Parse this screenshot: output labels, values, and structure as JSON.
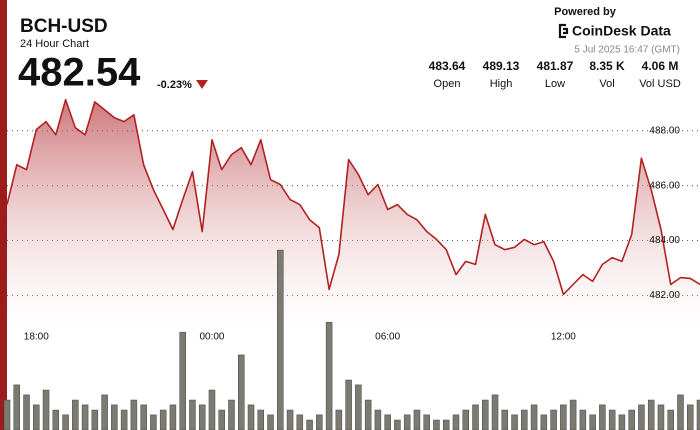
{
  "header": {
    "symbol": "BCH-USD",
    "subtitle": "24 Hour Chart",
    "price": "482.54",
    "change": "-0.23%",
    "powered_by": "Powered by",
    "brand": "CoinDesk Data",
    "timestamp": "5 Jul 2025 16:47 (GMT)"
  },
  "stats": [
    {
      "value": "483.64",
      "label": "Open"
    },
    {
      "value": "489.13",
      "label": "High"
    },
    {
      "value": "481.87",
      "label": "Low"
    },
    {
      "value": "8.35 K",
      "label": "Vol"
    },
    {
      "value": "4.06 M",
      "label": "Vol USD"
    }
  ],
  "chart_data": {
    "type": "area",
    "x": [
      "17:00",
      "17:20",
      "17:40",
      "18:00",
      "18:20",
      "18:40",
      "19:00",
      "19:20",
      "19:40",
      "20:00",
      "20:20",
      "20:40",
      "21:00",
      "21:20",
      "21:40",
      "22:00",
      "22:20",
      "22:40",
      "23:00",
      "23:20",
      "23:40",
      "00:00",
      "00:20",
      "00:40",
      "01:00",
      "01:20",
      "01:40",
      "02:00",
      "02:20",
      "02:40",
      "03:00",
      "03:20",
      "03:40",
      "04:00",
      "04:20",
      "04:40",
      "05:00",
      "05:20",
      "05:40",
      "06:00",
      "06:20",
      "06:40",
      "07:00",
      "07:20",
      "07:40",
      "08:00",
      "08:20",
      "08:40",
      "09:00",
      "09:20",
      "09:40",
      "10:00",
      "10:20",
      "10:40",
      "11:00",
      "11:20",
      "11:40",
      "12:00",
      "12:20",
      "12:40",
      "13:00",
      "13:20",
      "13:40",
      "14:00",
      "14:20",
      "14:40",
      "15:00",
      "15:20",
      "15:40",
      "16:00",
      "16:20",
      "16:40"
    ],
    "series": [
      {
        "color": "#b22222",
        "values": [
          485.31,
          486.76,
          486.58,
          488.04,
          488.33,
          487.85,
          489.13,
          488.11,
          487.85,
          489.05,
          488.76,
          488.47,
          488.33,
          488.58,
          486.76,
          485.85,
          485.13,
          484.4,
          485.49,
          486.51,
          484.33,
          487.67,
          486.58,
          487.13,
          487.38,
          486.76,
          487.67,
          486.22,
          486.04,
          485.49,
          485.31,
          484.76,
          484.47,
          482.22,
          483.49,
          486.95,
          486.4,
          485.67,
          486.04,
          485.13,
          485.31,
          484.95,
          484.76,
          484.33,
          484.04,
          483.67,
          482.76,
          483.24,
          483.13,
          484.95,
          483.85,
          483.67,
          483.75,
          484.04,
          483.85,
          483.96,
          483.24,
          482.04,
          482.4,
          482.76,
          482.51,
          483.13,
          483.38,
          483.24,
          484.22,
          487.0,
          485.85,
          484.4,
          482.4,
          482.65,
          482.62,
          482.4
        ]
      },
      {
        "type": "bar",
        "axis": "y2",
        "color": "#7b7b72",
        "values": [
          99,
          149,
          116,
          83,
          132,
          66,
          50,
          99,
          83,
          66,
          116,
          83,
          66,
          99,
          83,
          50,
          66,
          83,
          323,
          99,
          83,
          132,
          66,
          99,
          248,
          83,
          66,
          50,
          594,
          66,
          50,
          33,
          50,
          356,
          66,
          165,
          149,
          99,
          66,
          50,
          33,
          50,
          66,
          50,
          33,
          33,
          50,
          66,
          83,
          99,
          116,
          66,
          50,
          66,
          83,
          50,
          66,
          83,
          99,
          66,
          50,
          83,
          66,
          50,
          66,
          83,
          99,
          83,
          66,
          116,
          83,
          99
        ]
      }
    ],
    "ylim": [
      477.1,
      489.3
    ],
    "yticks": [
      {
        "value": 482,
        "label": "482.00"
      },
      {
        "value": 484,
        "label": "484.00"
      },
      {
        "value": 486,
        "label": "486.00"
      },
      {
        "value": 488,
        "label": "488.00"
      }
    ],
    "y2lim": [
      0,
      700
    ],
    "xticks": [
      "18:00",
      "00:00",
      "06:00",
      "12:00"
    ],
    "grid": true
  }
}
